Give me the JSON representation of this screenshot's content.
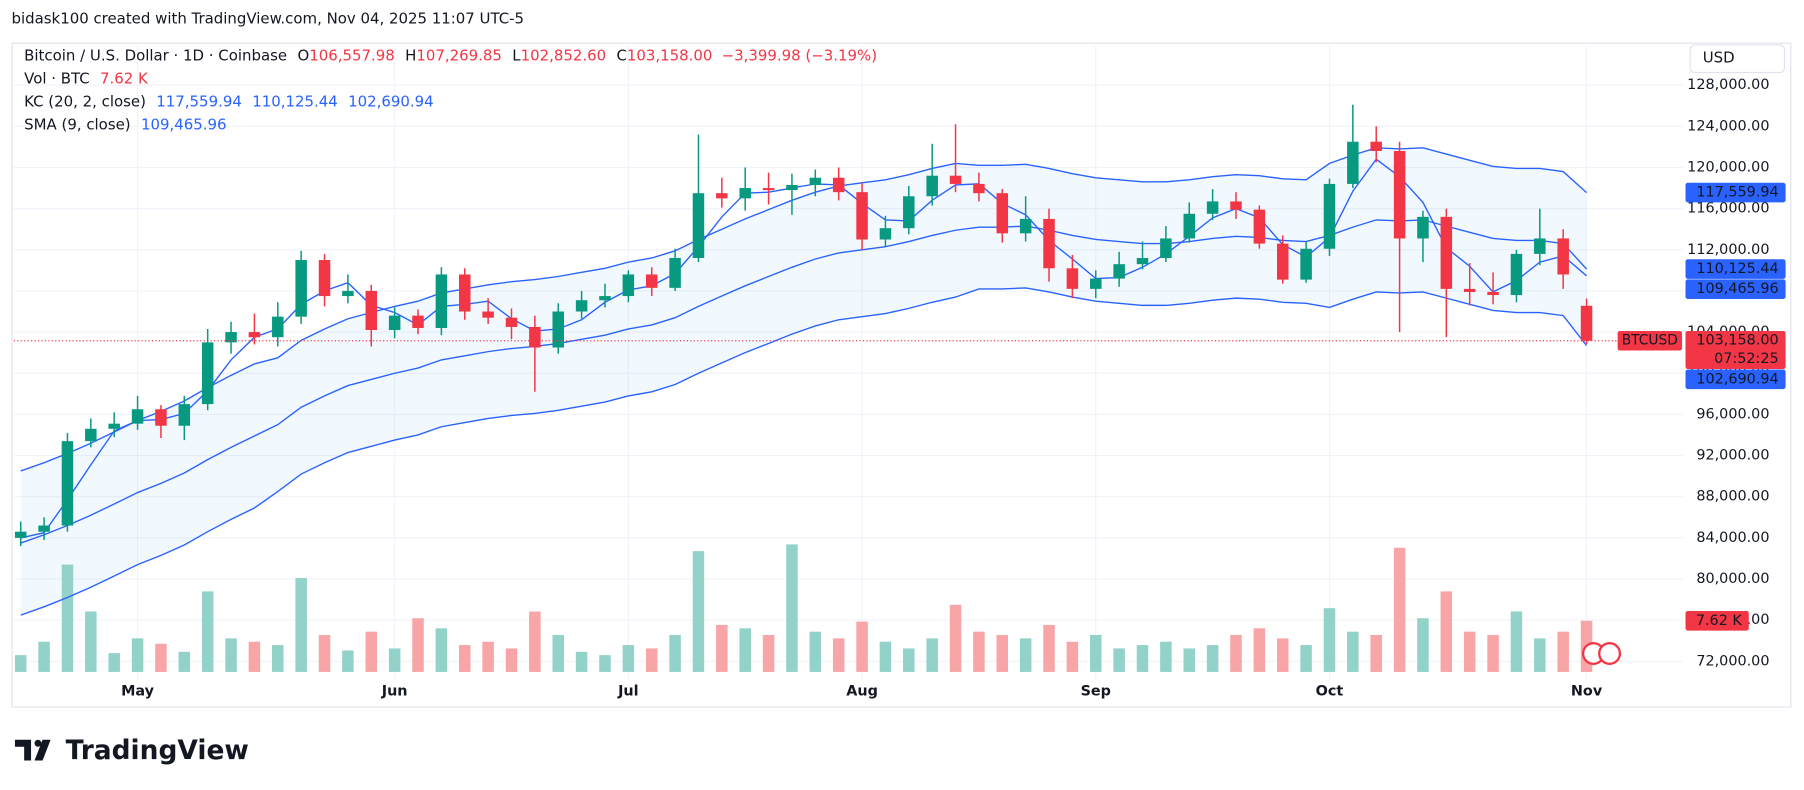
{
  "header": {
    "attribution": "bidask100 created with TradingView.com, Nov 04, 2025 11:07 UTC-5"
  },
  "chart_data": {
    "type": "candlestick",
    "legend": {
      "symbol": "Bitcoin / U.S. Dollar · 1D · Coinbase",
      "ohlc": [
        {
          "key": "O",
          "value": "106,557.98"
        },
        {
          "key": "H",
          "value": "107,269.85"
        },
        {
          "key": "L",
          "value": "102,852.60"
        },
        {
          "key": "C",
          "value": "103,158.00"
        }
      ],
      "change": "−3,399.98 (−3.19%)",
      "volume": {
        "name": "Vol · BTC",
        "value": "7.62 K"
      },
      "kc": {
        "name": "KC (20, 2, close)",
        "values": [
          "117,559.94",
          "110,125.44",
          "102,690.94"
        ]
      },
      "sma": {
        "name": "SMA (9, close)",
        "value": "109,465.96"
      }
    },
    "categories": [
      null,
      null,
      null,
      null,
      null,
      "May",
      null,
      null,
      null,
      null,
      null,
      null,
      null,
      null,
      null,
      null,
      "Jun",
      null,
      null,
      null,
      null,
      null,
      null,
      null,
      null,
      null,
      "Jul",
      null,
      null,
      null,
      null,
      null,
      null,
      null,
      null,
      null,
      "Aug",
      null,
      null,
      null,
      null,
      null,
      null,
      null,
      null,
      null,
      "Sep",
      null,
      null,
      null,
      null,
      null,
      null,
      null,
      null,
      null,
      "Oct",
      null,
      null,
      null,
      null,
      null,
      null,
      null,
      null,
      null,
      null,
      "Nov"
    ],
    "open": [
      84000,
      84600,
      85200,
      93400,
      94600,
      95100,
      96500,
      94900,
      97000,
      103000,
      104000,
      103500,
      105500,
      111000,
      107500,
      108000,
      104200,
      105600,
      104400,
      109600,
      106000,
      105400,
      104500,
      102500,
      106000,
      107100,
      107500,
      109600,
      108300,
      111200,
      117500,
      117000,
      118000,
      117800,
      118300,
      119000,
      117600,
      113000,
      114100,
      117200,
      119200,
      118400,
      117500,
      113600,
      115000,
      110200,
      108200,
      109200,
      110600,
      111200,
      113100,
      115500,
      116700,
      115900,
      112600,
      109100,
      112100,
      118400,
      122500,
      121600,
      113100,
      115200,
      108200,
      107900,
      107600,
      111600,
      113100,
      106557.98
    ],
    "high": [
      85600,
      86000,
      94200,
      95600,
      96200,
      97800,
      96900,
      97800,
      104300,
      105000,
      105800,
      106900,
      111900,
      111600,
      109600,
      108600,
      106400,
      106200,
      110300,
      110200,
      107300,
      106300,
      105600,
      106800,
      108000,
      108700,
      110000,
      110300,
      112100,
      123200,
      119000,
      120000,
      119500,
      119400,
      119800,
      120000,
      118500,
      115300,
      118200,
      122300,
      124200,
      119500,
      117900,
      117200,
      116000,
      111500,
      110000,
      111800,
      112800,
      114300,
      116600,
      117900,
      117600,
      116300,
      113400,
      112800,
      118900,
      126100,
      124000,
      122500,
      115800,
      116000,
      110700,
      109800,
      112000,
      116000,
      114000,
      107269.85
    ],
    "low": [
      83200,
      83800,
      84600,
      92800,
      93800,
      94500,
      93700,
      93500,
      96400,
      101900,
      102800,
      102600,
      104800,
      106500,
      106800,
      102600,
      103400,
      103800,
      103700,
      105200,
      104800,
      103300,
      98200,
      101900,
      105300,
      106400,
      106900,
      107500,
      108000,
      110800,
      116100,
      115800,
      116400,
      115400,
      117200,
      116800,
      112000,
      112300,
      113500,
      116300,
      117600,
      116700,
      112700,
      112800,
      108900,
      107300,
      107300,
      108400,
      110100,
      110800,
      112700,
      114900,
      115000,
      112100,
      108700,
      108800,
      111400,
      118000,
      120500,
      104000,
      110800,
      103500,
      106600,
      106700,
      106900,
      110500,
      108200,
      102852.6
    ],
    "close": [
      84600,
      85200,
      93400,
      94600,
      95100,
      96500,
      94900,
      97000,
      103000,
      104000,
      103500,
      105500,
      111000,
      107500,
      108000,
      104200,
      105600,
      104400,
      109600,
      106000,
      105400,
      104500,
      102500,
      106000,
      107100,
      107500,
      109600,
      108300,
      111200,
      117500,
      117000,
      118000,
      117800,
      118300,
      119000,
      117600,
      113000,
      114100,
      117200,
      119200,
      118400,
      117500,
      113600,
      115000,
      110200,
      108200,
      109200,
      110600,
      111200,
      113100,
      115500,
      116700,
      115900,
      112600,
      109100,
      112100,
      118400,
      122500,
      121600,
      113100,
      115200,
      108200,
      107900,
      107600,
      111600,
      113100,
      109600,
      103158
    ],
    "up_color": "#089981",
    "down_color": "#f23645",
    "volume": {
      "values": [
        2500,
        4500,
        16000,
        9000,
        2800,
        5000,
        4200,
        3000,
        12000,
        5000,
        4500,
        4000,
        14000,
        5500,
        3200,
        6000,
        3500,
        8000,
        6500,
        4000,
        4500,
        3500,
        9000,
        5500,
        3000,
        2500,
        4000,
        3500,
        5500,
        18000,
        7000,
        6500,
        5500,
        19000,
        6000,
        5000,
        7500,
        4500,
        3500,
        5000,
        10000,
        6000,
        5500,
        5000,
        7000,
        4500,
        5500,
        3500,
        4000,
        4500,
        3500,
        4000,
        5500,
        6500,
        5000,
        4000,
        9500,
        6000,
        5500,
        18500,
        8000,
        12000,
        6000,
        5500,
        9000,
        5000,
        6000,
        7620
      ],
      "ylim": [
        0,
        30000
      ],
      "up_color": "#92d2c9",
      "down_color": "#f7a5a6"
    },
    "overlays": [
      {
        "values": [
          90500,
          91300,
          92200,
          93200,
          94300,
          95400,
          96300,
          97300,
          98600,
          99800,
          100900,
          101500,
          103200,
          104300,
          105300,
          105900,
          106500,
          107000,
          107800,
          108200,
          108600,
          108900,
          109100,
          109400,
          109800,
          110200,
          110800,
          111200,
          111900,
          113000,
          114000,
          115000,
          115900,
          116800,
          117600,
          118200,
          118500,
          118800,
          119300,
          119900,
          120400,
          120200,
          120200,
          120300,
          119900,
          119400,
          119000,
          118800,
          118600,
          118600,
          118800,
          119100,
          119300,
          119200,
          118900,
          118800,
          120400,
          121200,
          121900,
          121800,
          121900,
          121300,
          120700,
          120100,
          119900,
          119900,
          119600,
          117559.94
        ],
        "color": "#2962ff"
      },
      {
        "values": [
          83500,
          84300,
          85200,
          86200,
          87300,
          88400,
          89300,
          90300,
          91600,
          92800,
          93900,
          95000,
          96700,
          97800,
          98800,
          99400,
          100000,
          100500,
          101300,
          101700,
          102100,
          102400,
          102600,
          102900,
          103300,
          103700,
          104300,
          104700,
          105400,
          106500,
          107500,
          108500,
          109400,
          110300,
          111100,
          111700,
          112000,
          112300,
          112800,
          113400,
          113900,
          114200,
          114200,
          114300,
          113900,
          113400,
          113000,
          112800,
          112600,
          112600,
          112800,
          113100,
          113300,
          113200,
          112900,
          112800,
          113400,
          114200,
          114900,
          114800,
          114900,
          114300,
          113700,
          113100,
          112900,
          112900,
          112600,
          110125.44
        ],
        "color": "#2962ff"
      },
      {
        "values": [
          76500,
          77300,
          78200,
          79200,
          80300,
          81400,
          82300,
          83300,
          84600,
          85800,
          86900,
          88500,
          90200,
          91300,
          92300,
          92900,
          93500,
          94000,
          94800,
          95200,
          95600,
          95900,
          96100,
          96400,
          96800,
          97200,
          97800,
          98200,
          98900,
          100000,
          101000,
          102000,
          102900,
          103800,
          104600,
          105200,
          105500,
          105800,
          106300,
          106900,
          107400,
          108200,
          108200,
          108300,
          107900,
          107400,
          107000,
          106800,
          106600,
          106600,
          106800,
          107100,
          107300,
          107200,
          106900,
          106800,
          106400,
          107200,
          107900,
          107800,
          107900,
          107300,
          106700,
          106100,
          105900,
          105900,
          105600,
          102690.94
        ],
        "color": "#2962ff"
      },
      {
        "values": [
          84000,
          84500,
          87700,
          91100,
          94400,
          95400,
          95500,
          96100,
          98300,
          101300,
          103500,
          104300,
          106700,
          108000,
          108800,
          106600,
          105900,
          104700,
          106500,
          106700,
          107000,
          105300,
          104100,
          104300,
          105200,
          106900,
          108100,
          108500,
          109700,
          112300,
          115200,
          117500,
          117600,
          118000,
          118400,
          118300,
          116500,
          114900,
          114800,
          116800,
          118300,
          118400,
          116500,
          115400,
          112900,
          111100,
          109200,
          109300,
          110300,
          111600,
          113300,
          115100,
          116000,
          115100,
          112500,
          111300,
          113200,
          117700,
          120800,
          119100,
          116600,
          112200,
          110400,
          107900,
          109000,
          110800,
          111400,
          109465.96
        ],
        "color": "#2962ff"
      }
    ],
    "band_fill": "#2196f3",
    "ylim": [
      70300,
      131800
    ],
    "yticks": [
      {
        "value": 72000,
        "label": "72,000.00"
      },
      {
        "value": 76000,
        "label": "76,000.00"
      },
      {
        "value": 80000,
        "label": "80,000.00"
      },
      {
        "value": 84000,
        "label": "84,000.00"
      },
      {
        "value": 88000,
        "label": "88,000.00"
      },
      {
        "value": 92000,
        "label": "92,000.00"
      },
      {
        "value": 96000,
        "label": "96,000.00"
      },
      {
        "value": 100000,
        "label": "100,000.00"
      },
      {
        "value": 104000,
        "label": "104,000.00"
      },
      {
        "value": 108000,
        "label": "108,000.00"
      },
      {
        "value": 112000,
        "label": "112,000.00"
      },
      {
        "value": 116000,
        "label": "116,000.00"
      },
      {
        "value": 120000,
        "label": "120,000.00"
      },
      {
        "value": 124000,
        "label": "124,000.00"
      },
      {
        "value": 128000,
        "label": "128,000.00"
      }
    ],
    "grid": true,
    "currency": "USD",
    "symbol_tag": "BTCUSD",
    "price_tags": [
      {
        "value": 117559.94,
        "label": "117,559.94",
        "color": "#2962ff"
      },
      {
        "value": 110125.44,
        "label": "110,125.44",
        "color": "#2962ff"
      },
      {
        "value": 109465.96,
        "label": "109,465.96",
        "color": "#2962ff"
      },
      {
        "value": 103158,
        "label": "103,158.00",
        "color": "#f23645",
        "countdown": "07:52:25"
      },
      {
        "value": 102690.94,
        "label": "102,690.94",
        "color": "#2962ff"
      }
    ]
  },
  "footer": {
    "brand": "TradingView"
  }
}
